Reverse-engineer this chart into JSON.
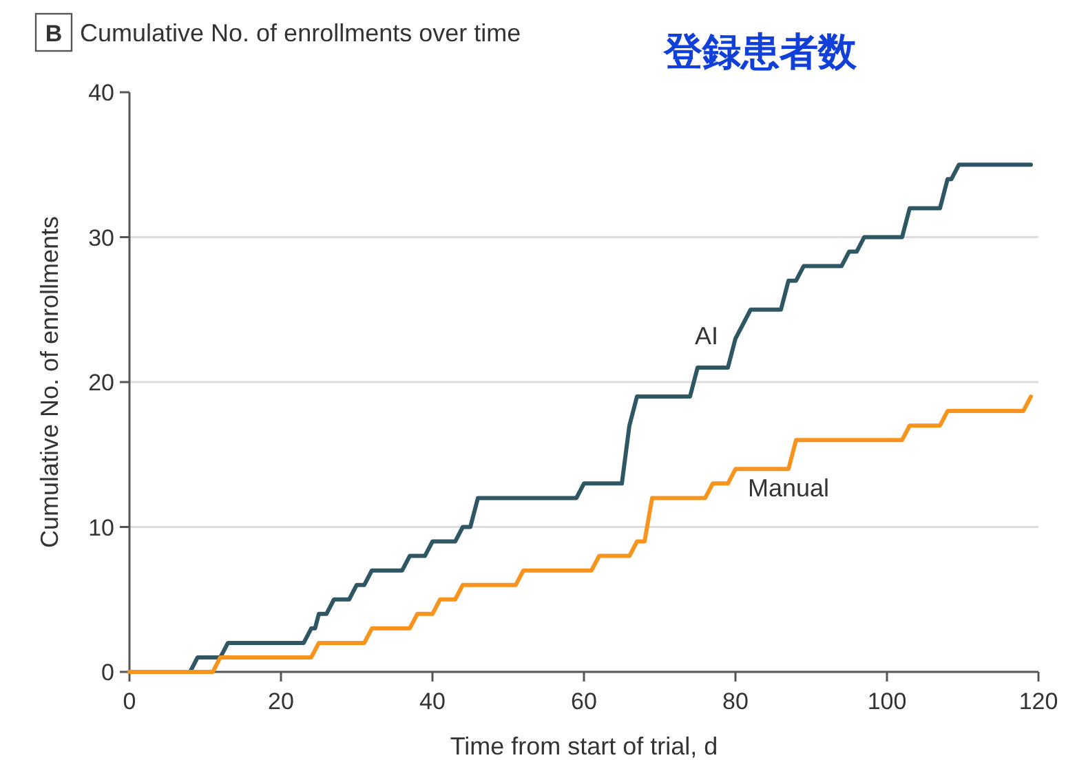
{
  "chart_data": {
    "type": "line",
    "title": "Cumulative No. of enrollments over time",
    "annotations": [
      "B",
      "登録患者数"
    ],
    "xlabel": "Time from start of trial, d",
    "ylabel": "Cumulative No. of enrollments",
    "series": [
      {
        "name": "AI",
        "color": "#2f5663",
        "x": [
          0,
          8,
          9,
          12,
          13,
          23,
          24,
          24.5,
          25,
          26,
          27,
          29,
          30,
          31,
          32,
          36,
          37,
          39,
          40,
          43,
          44,
          45,
          46,
          59,
          60,
          65,
          66,
          67,
          74,
          75,
          79,
          80,
          82,
          86,
          87,
          88,
          89,
          94,
          95,
          96,
          97,
          102,
          103,
          107,
          108,
          108.5,
          109.5,
          119
        ],
        "values": [
          0,
          0,
          1,
          1,
          2,
          2,
          3,
          3,
          4,
          4,
          5,
          5,
          6,
          6,
          7,
          7,
          8,
          8,
          9,
          9,
          10,
          10,
          12,
          12,
          13,
          13,
          17,
          19,
          19,
          21,
          21,
          23,
          25,
          25,
          27,
          27,
          28,
          28,
          29,
          29,
          30,
          30,
          32,
          32,
          34,
          34,
          35,
          35
        ]
      },
      {
        "name": "Manual",
        "color": "#f7941d",
        "x": [
          0,
          11,
          12,
          24,
          25,
          31,
          32,
          37,
          38,
          40,
          41,
          43,
          44,
          51,
          52,
          61,
          62,
          66,
          67,
          68,
          69,
          76,
          77,
          79,
          80,
          87,
          88,
          102,
          103,
          107,
          108,
          118,
          119
        ],
        "values": [
          0,
          0,
          1,
          1,
          2,
          2,
          3,
          3,
          4,
          4,
          5,
          5,
          6,
          6,
          7,
          7,
          8,
          8,
          9,
          9,
          12,
          12,
          13,
          13,
          14,
          14,
          16,
          16,
          17,
          17,
          18,
          18,
          19
        ]
      }
    ],
    "xlim": [
      0,
      120
    ],
    "xticks": [
      0,
      20,
      40,
      60,
      80,
      100,
      120
    ],
    "ylim": [
      0,
      40
    ],
    "yticks": [
      0,
      10,
      20,
      30,
      40
    ],
    "grid": "y",
    "marker": "none",
    "line_style": "solid"
  }
}
